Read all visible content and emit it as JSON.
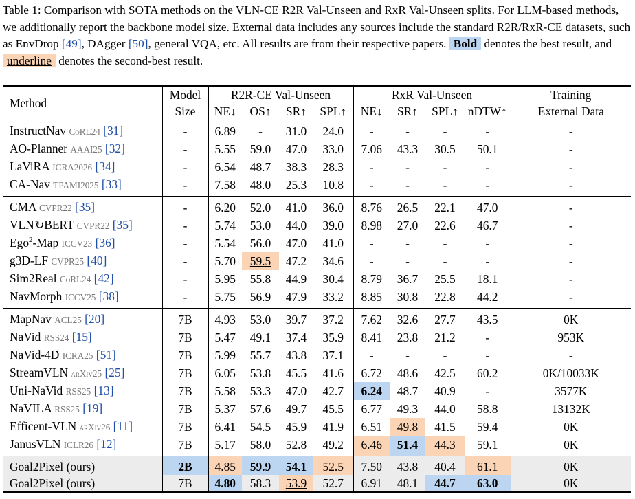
{
  "caption": {
    "p1": "Table 1: Comparison with SOTA methods on the VLN-CE R2R Val-Unseen and RxR Val-Unseen splits. For LLM-based methods, we additionally report the backbone model size. External data includes any sources include the standard R2R/RxR-CE datasets, such as EnvDrop ",
    "r1": "[49]",
    "p2": ", DAgger ",
    "r2": "[50]",
    "p3": ", general VQA, etc. All results are from their respective papers. ",
    "bold_label": "Bold",
    "p4": " denotes the best result, and ",
    "underline_label": "underline",
    "p5": " denotes the second-best result."
  },
  "headers": {
    "method": "Method",
    "model_size_1": "Model",
    "model_size_2": "Size",
    "r2r_group": "R2R-CE Val-Unseen",
    "rxr_group": "RxR Val-Unseen",
    "training_1": "Training",
    "training_2": "External Data",
    "r2r_cols": [
      "NE↓",
      "OS↑",
      "SR↑",
      "SPL↑"
    ],
    "rxr_cols": [
      "NE↓",
      "SR↑",
      "SPL↑",
      "nDTW↑"
    ]
  },
  "rows": [
    {
      "name": "InstructNav",
      "venue": "CoRL24",
      "ref": "[31]",
      "size": "-",
      "vals": [
        "6.89",
        "-",
        "31.0",
        "24.0",
        "-",
        "-",
        "-",
        "-"
      ],
      "ext": "-"
    },
    {
      "name": "AO-Planner",
      "venue": "AAAI25",
      "ref": "[32]",
      "size": "-",
      "vals": [
        "5.55",
        "59.0",
        "47.0",
        "33.0",
        "7.06",
        "43.3",
        "30.5",
        "50.1"
      ],
      "ext": "-"
    },
    {
      "name": "LaViRA",
      "venue": "ICRA2026",
      "ref": "[34]",
      "size": "-",
      "vals": [
        "6.54",
        "48.7",
        "38.3",
        "28.3",
        "-",
        "-",
        "-",
        "-"
      ],
      "ext": "-"
    },
    {
      "name": "CA-Nav",
      "venue": "TPAMI2025",
      "ref": "[33]",
      "size": "-",
      "vals": [
        "7.58",
        "48.0",
        "25.3",
        "10.8",
        "-",
        "-",
        "-",
        "-"
      ],
      "ext": "-"
    },
    {
      "name": "CMA",
      "venue": "CVPR22",
      "ref": "[35]",
      "size": "-",
      "vals": [
        "6.20",
        "52.0",
        "41.0",
        "36.0",
        "8.76",
        "26.5",
        "22.1",
        "47.0"
      ],
      "ext": "-"
    },
    {
      "name": "VLN↻BERT",
      "venue": "CVPR22",
      "ref": "[35]",
      "size": "-",
      "vals": [
        "5.74",
        "53.0",
        "44.0",
        "39.0",
        "8.98",
        "27.0",
        "22.6",
        "46.7"
      ],
      "ext": "-"
    },
    {
      "name": "Ego",
      "sup": "2",
      "name2": "-Map",
      "venue": "ICCV23",
      "ref": "[36]",
      "size": "-",
      "vals": [
        "5.54",
        "56.0",
        "47.0",
        "41.0",
        "-",
        "-",
        "-",
        "-"
      ],
      "ext": "-"
    },
    {
      "name": "g3D-LF",
      "venue": "CVPR25",
      "ref": "[40]",
      "size": "-",
      "vals": [
        "5.70",
        "59.5",
        "47.2",
        "34.6",
        "-",
        "-",
        "-",
        "-"
      ],
      "ext": "-"
    },
    {
      "name": "Sim2Real",
      "venue": "CoRL24",
      "ref": "[42]",
      "size": "-",
      "vals": [
        "5.95",
        "55.8",
        "44.9",
        "30.4",
        "8.79",
        "36.7",
        "25.5",
        "18.1"
      ],
      "ext": "-"
    },
    {
      "name": "NavMorph",
      "venue": "ICCV25",
      "ref": "[38]",
      "size": "-",
      "vals": [
        "5.75",
        "56.9",
        "47.9",
        "33.2",
        "8.85",
        "30.8",
        "22.8",
        "44.2"
      ],
      "ext": "-"
    },
    {
      "name": "MapNav",
      "venue": "ACL25",
      "ref": "[20]",
      "size": "7B",
      "vals": [
        "4.93",
        "53.0",
        "39.7",
        "37.2",
        "7.62",
        "32.6",
        "27.7",
        "43.5"
      ],
      "ext": "0K"
    },
    {
      "name": "NaVid",
      "venue": "RSS24",
      "ref": "[15]",
      "size": "7B",
      "vals": [
        "5.47",
        "49.1",
        "37.4",
        "35.9",
        "8.41",
        "23.8",
        "21.2",
        "-"
      ],
      "ext": "953K"
    },
    {
      "name": "NaVid-4D",
      "venue": "ICRA25",
      "ref": "[51]",
      "size": "7B",
      "vals": [
        "5.99",
        "55.7",
        "43.8",
        "37.1",
        "-",
        "-",
        "-",
        "-"
      ],
      "ext": "-"
    },
    {
      "name": "StreamVLN",
      "venue": "arXiv25",
      "ref": "[25]",
      "size": "7B",
      "vals": [
        "6.05",
        "53.8",
        "45.5",
        "41.6",
        "6.72",
        "48.6",
        "42.5",
        "60.2"
      ],
      "ext": "0K/10033K"
    },
    {
      "name": "Uni-NaVid",
      "venue": "RSS25",
      "ref": "[13]",
      "size": "7B",
      "vals": [
        "5.58",
        "53.3",
        "47.0",
        "42.7",
        "6.24",
        "48.7",
        "40.9",
        "-"
      ],
      "ext": "3577K"
    },
    {
      "name": "NaVILA",
      "venue": "RSS25",
      "ref": "[19]",
      "size": "7B",
      "vals": [
        "5.37",
        "57.6",
        "49.7",
        "45.5",
        "6.77",
        "49.3",
        "44.0",
        "58.8"
      ],
      "ext": "13132K"
    },
    {
      "name": "Efficent-VLN",
      "venue": "arXiv26",
      "ref": "[11]",
      "size": "7B",
      "vals": [
        "6.41",
        "54.5",
        "45.9",
        "41.9",
        "6.51",
        "49.8",
        "41.5",
        "59.4"
      ],
      "ext": "0K"
    },
    {
      "name": "JanusVLN",
      "venue": "ICLR26",
      "ref": "[12]",
      "size": "7B",
      "vals": [
        "5.17",
        "58.0",
        "52.8",
        "49.2",
        "6.46",
        "51.4",
        "44.3",
        "59.1"
      ],
      "ext": "0K"
    },
    {
      "name": "Goal2Pixel (ours)",
      "venue": "",
      "ref": "",
      "size": "2B",
      "vals": [
        "4.85",
        "59.9",
        "54.1",
        "52.5",
        "7.50",
        "43.8",
        "40.4",
        "61.1"
      ],
      "ext": "0K"
    },
    {
      "name": "Goal2Pixel (ours)",
      "venue": "",
      "ref": "",
      "size": "7B",
      "vals": [
        "4.80",
        "58.3",
        "53.9",
        "52.7",
        "6.91",
        "48.1",
        "44.7",
        "63.0"
      ],
      "ext": "0K"
    }
  ],
  "highlights": {
    "best_color": "#bcd6f2",
    "second_color": "#fad4b4",
    "best": [
      [
        14,
        4
      ],
      [
        17,
        5
      ],
      [
        18,
        1
      ],
      [
        18,
        2
      ],
      [
        19,
        0
      ],
      [
        19,
        6
      ],
      [
        19,
        7
      ],
      [
        "size",
        18
      ]
    ],
    "second": [
      [
        7,
        1
      ],
      [
        16,
        5
      ],
      [
        17,
        4
      ],
      [
        17,
        6
      ],
      [
        18,
        0
      ],
      [
        18,
        3
      ],
      [
        18,
        7
      ],
      [
        19,
        2
      ]
    ]
  }
}
